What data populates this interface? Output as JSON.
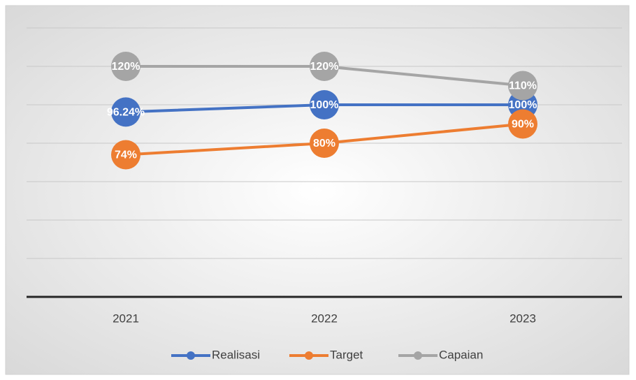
{
  "chart_data": {
    "type": "line",
    "categories": [
      "2021",
      "2022",
      "2023"
    ],
    "series": [
      {
        "name": "Realisasi",
        "color": "#4472c4",
        "values": [
          96.24,
          100,
          100
        ],
        "value_labels": [
          "96.24%",
          "100%",
          "100%"
        ]
      },
      {
        "name": "Target",
        "color": "#ed7d31",
        "values": [
          74,
          80,
          90
        ],
        "value_labels": [
          "74%",
          "80%",
          "90%"
        ]
      },
      {
        "name": "Capaian",
        "color": "#a5a5a5",
        "values": [
          120,
          120,
          110
        ],
        "value_labels": [
          "120%",
          "120%",
          "110%"
        ]
      }
    ],
    "ylim": [
      0,
      140
    ],
    "yticks": [
      0,
      20,
      40,
      60,
      80,
      100,
      120,
      140
    ],
    "grid": true,
    "legend": "bottom"
  }
}
